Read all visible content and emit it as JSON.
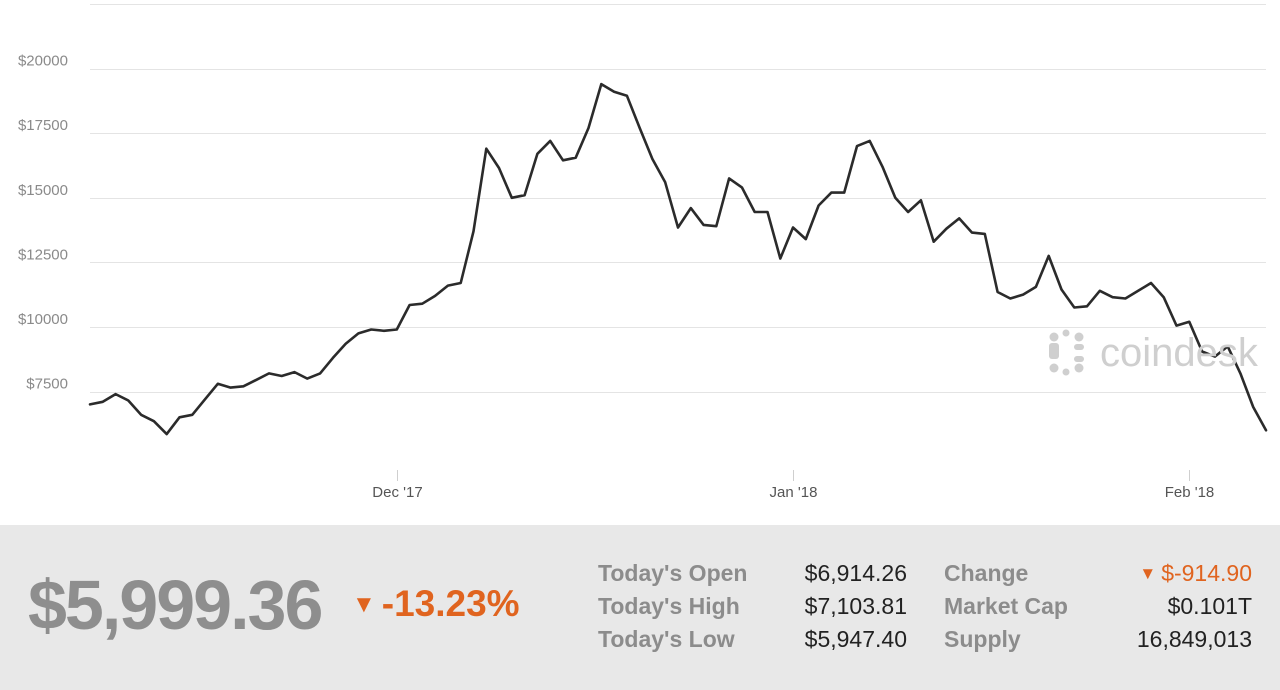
{
  "chart_data": {
    "type": "line",
    "ylim": [
      4500,
      22500
    ],
    "y_ticks": [
      7500,
      10000,
      12500,
      15000,
      17500,
      20000
    ],
    "y_tick_labels": [
      "$7500",
      "$10000",
      "$12500",
      "$15000",
      "$17500",
      "$20000"
    ],
    "x_ticks": [
      {
        "label": "Dec '17",
        "index": 24
      },
      {
        "label": "Jan '18",
        "index": 55
      },
      {
        "label": "Feb '18",
        "index": 86
      }
    ],
    "grid": true,
    "series": [
      {
        "values": [
          7000,
          7100,
          7400,
          7150,
          6600,
          6350,
          5850,
          6500,
          6600,
          7200,
          7800,
          7650,
          7700,
          7950,
          8200,
          8100,
          8250,
          8000,
          8200,
          8800,
          9350,
          9750,
          9900,
          9850,
          9900,
          10850,
          10900,
          11200,
          11600,
          11700,
          13700,
          16900,
          16150,
          15000,
          15100,
          16700,
          17200,
          16450,
          16550,
          17700,
          19400,
          19100,
          18950,
          17700,
          16500,
          15600,
          13850,
          14600,
          13950,
          13900,
          15750,
          15400,
          14450,
          14450,
          12650,
          13850,
          13400,
          14700,
          15200,
          15200,
          17000,
          17200,
          16200,
          15000,
          14450,
          14900,
          13300,
          13800,
          14200,
          13650,
          13600,
          11350,
          11100,
          11250,
          11550,
          12750,
          11450,
          10750,
          10800,
          11400,
          11150,
          11100,
          11400,
          11700,
          11150,
          10050,
          10200,
          9050,
          8850,
          9250,
          8200,
          6900,
          6000
        ]
      }
    ]
  },
  "watermark": {
    "brand": "coindesk"
  },
  "summary": {
    "price": "$5,999.36",
    "change_pct": "-13.23%",
    "down_arrow": "▼",
    "accent_color": "#e0641f",
    "stats": [
      {
        "label": "Today's Open",
        "value": "$6,914.26"
      },
      {
        "label": "Today's High",
        "value": "$7,103.81"
      },
      {
        "label": "Today's Low",
        "value": "$5,947.40"
      },
      {
        "label": "Change",
        "value": "$-914.90"
      },
      {
        "label": "Market Cap",
        "value": "$0.101T"
      },
      {
        "label": "Supply",
        "value": "16,849,013"
      }
    ]
  }
}
